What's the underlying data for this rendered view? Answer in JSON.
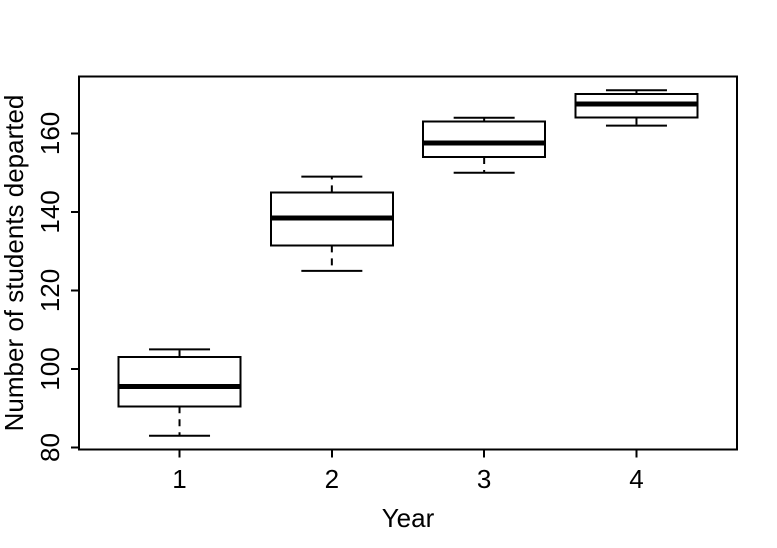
{
  "chart_data": {
    "type": "boxplot",
    "title": "",
    "xlabel": "Year",
    "ylabel": "Number of students departed",
    "categories": [
      "1",
      "2",
      "3",
      "4"
    ],
    "y_ticks": [
      80,
      100,
      120,
      140,
      160
    ],
    "ylim": [
      79.5,
      174.5
    ],
    "xlim": [
      0.34,
      4.66
    ],
    "grid": false,
    "legend": false,
    "series": [
      {
        "category": "1",
        "x": 1,
        "whisker_low": 83,
        "q1": 90.5,
        "median": 95.5,
        "q3": 103,
        "whisker_high": 105
      },
      {
        "category": "2",
        "x": 2,
        "whisker_low": 125,
        "q1": 131.5,
        "median": 138.5,
        "q3": 145,
        "whisker_high": 149
      },
      {
        "category": "3",
        "x": 3,
        "whisker_low": 150,
        "q1": 154,
        "median": 157.5,
        "q3": 163,
        "whisker_high": 164
      },
      {
        "category": "4",
        "x": 4,
        "whisker_low": 162,
        "q1": 164,
        "median": 167.5,
        "q3": 170,
        "whisker_high": 171
      }
    ],
    "colors": {
      "stroke": "#000000",
      "box_fill": "#ffffff",
      "background": "#ffffff"
    }
  }
}
